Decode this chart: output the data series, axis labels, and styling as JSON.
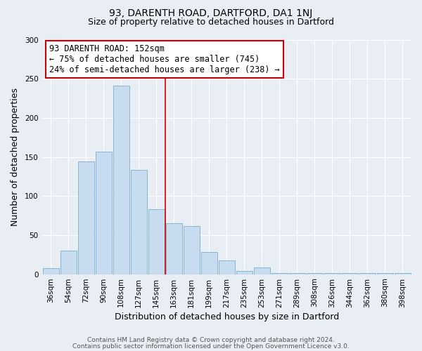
{
  "title": "93, DARENTH ROAD, DARTFORD, DA1 1NJ",
  "subtitle": "Size of property relative to detached houses in Dartford",
  "xlabel": "Distribution of detached houses by size in Dartford",
  "ylabel": "Number of detached properties",
  "categories": [
    "36sqm",
    "54sqm",
    "72sqm",
    "90sqm",
    "108sqm",
    "127sqm",
    "145sqm",
    "163sqm",
    "181sqm",
    "199sqm",
    "217sqm",
    "235sqm",
    "253sqm",
    "271sqm",
    "289sqm",
    "308sqm",
    "326sqm",
    "344sqm",
    "362sqm",
    "380sqm",
    "398sqm"
  ],
  "values": [
    8,
    30,
    144,
    157,
    241,
    133,
    83,
    65,
    62,
    28,
    18,
    4,
    9,
    1,
    1,
    1,
    1,
    1,
    1,
    1,
    1
  ],
  "bar_color": "#c8dcf0",
  "bar_edge_color": "#7aaed0",
  "ref_line_color": "#cc0000",
  "annotation_title": "93 DARENTH ROAD: 152sqm",
  "annotation_line1": "← 75% of detached houses are smaller (745)",
  "annotation_line2": "24% of semi-detached houses are larger (238) →",
  "annotation_box_facecolor": "#ffffff",
  "annotation_box_edgecolor": "#cc0000",
  "ylim": [
    0,
    300
  ],
  "yticks": [
    0,
    50,
    100,
    150,
    200,
    250,
    300
  ],
  "footer1": "Contains HM Land Registry data © Crown copyright and database right 2024.",
  "footer2": "Contains public sector information licensed under the Open Government Licence v3.0.",
  "bg_color": "#e8eef4",
  "plot_bg_color": "#e8eef4",
  "grid_color": "#ffffff",
  "title_fontsize": 10,
  "subtitle_fontsize": 9,
  "axis_label_fontsize": 9,
  "tick_fontsize": 7.5,
  "annotation_fontsize": 8.5,
  "footer_fontsize": 6.5
}
